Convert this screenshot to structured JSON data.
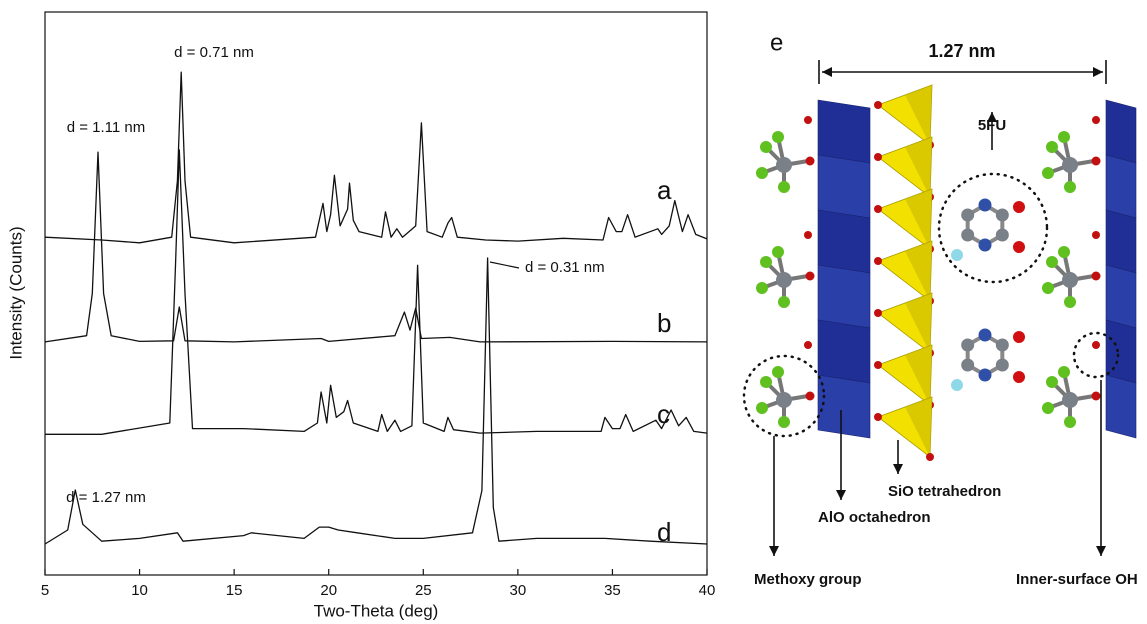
{
  "chart_data": {
    "type": "line",
    "xlabel": "Two-Theta (deg)",
    "ylabel": "Intensity (Counts)",
    "xlim": [
      5,
      40
    ],
    "xticks": [
      5,
      10,
      15,
      20,
      25,
      30,
      35,
      40
    ],
    "ylim": [
      0,
      100
    ],
    "series": [
      {
        "name": "a",
        "color": "#111111",
        "x": [
          5,
          8,
          10,
          11.7,
          12.0,
          12.2,
          12.4,
          12.7,
          15,
          19.3,
          19.7,
          19.9,
          20.1,
          20.3,
          20.6,
          21.0,
          21.1,
          21.3,
          21.6,
          22.8,
          23.0,
          23.3,
          23.6,
          23.9,
          24.6,
          24.9,
          25.2,
          26.0,
          26.3,
          26.5,
          26.8,
          28.3,
          30,
          32.4,
          34.5,
          34.8,
          35.2,
          35.5,
          35.8,
          36.2,
          37.4,
          37.6,
          38.0,
          38.3,
          38.7,
          39.0,
          39.4,
          40
        ],
        "values": [
          60,
          59.5,
          59,
          60,
          70,
          89.3,
          70,
          60,
          59,
          60,
          66,
          61,
          64,
          71,
          62,
          65,
          69.6,
          63,
          61,
          60,
          64.5,
          60,
          61.5,
          60,
          62,
          80.3,
          61,
          60,
          62.5,
          63.5,
          60,
          59.5,
          59.3,
          59.8,
          59.5,
          63.5,
          61,
          61,
          64,
          60,
          61.5,
          60.5,
          62,
          66.5,
          61,
          64,
          60.5,
          59.7
        ]
      },
      {
        "name": "b",
        "color": "#111111",
        "x": [
          5,
          7.2,
          7.5,
          7.8,
          8.1,
          8.5,
          10,
          11.8,
          12.1,
          12.4,
          15,
          19.6,
          20,
          23.5,
          24.0,
          24.3,
          24.6,
          24.9,
          26.4,
          28,
          35,
          40
        ],
        "values": [
          41.4,
          42.5,
          50,
          75.1,
          50,
          42.5,
          41.5,
          41.6,
          47.6,
          41.6,
          41.4,
          42,
          41.5,
          42.5,
          46.7,
          43.5,
          47.4,
          42,
          42.2,
          41.4,
          41.5,
          41.4
        ]
      },
      {
        "name": "c",
        "color": "#111111",
        "x": [
          5,
          8,
          11.6,
          11.9,
          12.1,
          12.4,
          12.8,
          15.5,
          18.7,
          19.4,
          19.6,
          19.9,
          20.1,
          20.4,
          20.8,
          21.0,
          21.3,
          22.6,
          22.8,
          23.1,
          23.5,
          23.8,
          24.4,
          24.7,
          25.0,
          26.1,
          26.3,
          26.6,
          28,
          31,
          34.4,
          34.6,
          35.0,
          35.4,
          35.7,
          36.1,
          37.3,
          37.6,
          38.1,
          38.5,
          38.9,
          39.3,
          40
        ],
        "values": [
          25,
          25,
          27,
          55,
          75.5,
          50,
          26,
          26,
          25.5,
          27,
          32.5,
          27,
          33.7,
          28,
          29,
          31,
          27,
          25.5,
          28.5,
          25.5,
          27.5,
          25.5,
          26.5,
          55,
          27,
          25.5,
          28,
          25.8,
          25.2,
          25.5,
          25.5,
          28,
          26,
          26,
          28.5,
          25.5,
          27.5,
          26,
          29.3,
          26.5,
          28,
          25.5,
          25.2
        ]
      },
      {
        "name": "d",
        "color": "#111111",
        "x": [
          5,
          6.2,
          6.6,
          7.0,
          8,
          10,
          12.0,
          12.3,
          15.5,
          15.9,
          18.7,
          19.5,
          20.0,
          20.5,
          21.5,
          23.5,
          25,
          27.6,
          28.1,
          28.4,
          28.7,
          29,
          31,
          34.6,
          37,
          40
        ],
        "values": [
          5.5,
          8,
          15.1,
          9,
          6,
          6.5,
          7.5,
          6,
          7,
          7.5,
          6.5,
          8.5,
          8.5,
          8,
          7.5,
          6.5,
          6.5,
          7.5,
          15,
          56.3,
          12,
          6,
          6.5,
          6.5,
          6,
          5.5
        ]
      }
    ],
    "annotations": [
      "d = 0.71 nm",
      "d = 1.11 nm",
      "d = 0.31 nm",
      "d = 1.27 nm"
    ]
  },
  "diagram": {
    "panel": "e",
    "spacing": "1.27 nm",
    "guest": "5FU",
    "labels": [
      "Methoxy group",
      "AlO octahedron",
      "SiO tetrahedron",
      "Inner-surface OH"
    ]
  }
}
